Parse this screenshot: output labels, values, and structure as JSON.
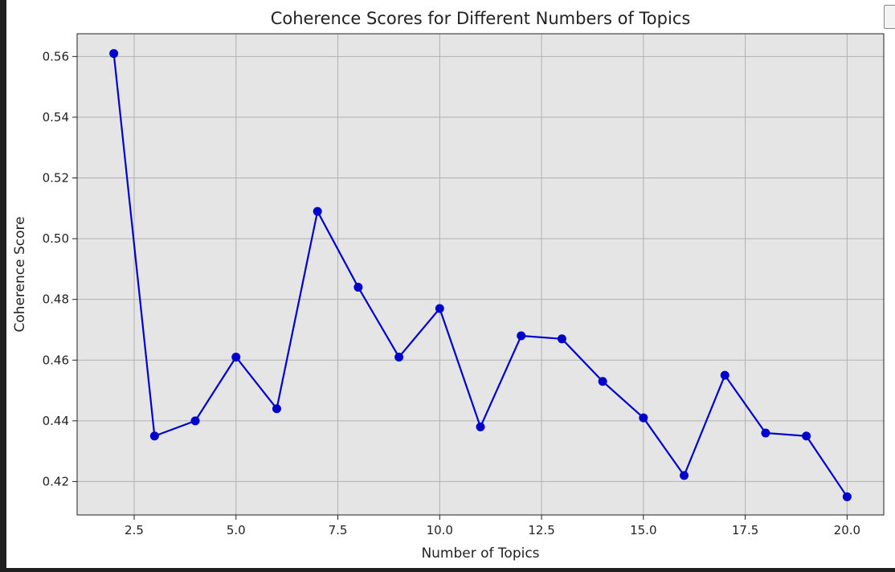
{
  "chart_data": {
    "type": "line",
    "title": "Coherence Scores for Different Numbers of Topics",
    "xlabel": "Number of Topics",
    "ylabel": "Coherence Score",
    "x": [
      2,
      3,
      4,
      5,
      6,
      7,
      8,
      9,
      10,
      11,
      12,
      13,
      14,
      15,
      16,
      17,
      18,
      19,
      20
    ],
    "series": [
      {
        "values": [
          0.561,
          0.435,
          0.44,
          0.461,
          0.444,
          0.509,
          0.484,
          0.461,
          0.477,
          0.438,
          0.468,
          0.467,
          0.453,
          0.441,
          0.422,
          0.455,
          0.436,
          0.435,
          0.415
        ],
        "color": "#0000cc",
        "marker": "circle"
      }
    ],
    "xlim": [
      1.1,
      20.9
    ],
    "ylim": [
      0.409,
      0.5675
    ],
    "xticks": [
      "2.5",
      "5.0",
      "7.5",
      "10.0",
      "12.5",
      "15.0",
      "17.5",
      "20.0"
    ],
    "yticks": [
      "0.42",
      "0.44",
      "0.46",
      "0.48",
      "0.50",
      "0.52",
      "0.54",
      "0.56"
    ],
    "grid": true,
    "plot_background": "#e5e5e5",
    "grid_color": "#b0b0b0"
  },
  "toolbar": {
    "corner_icon": "copy-icon"
  }
}
